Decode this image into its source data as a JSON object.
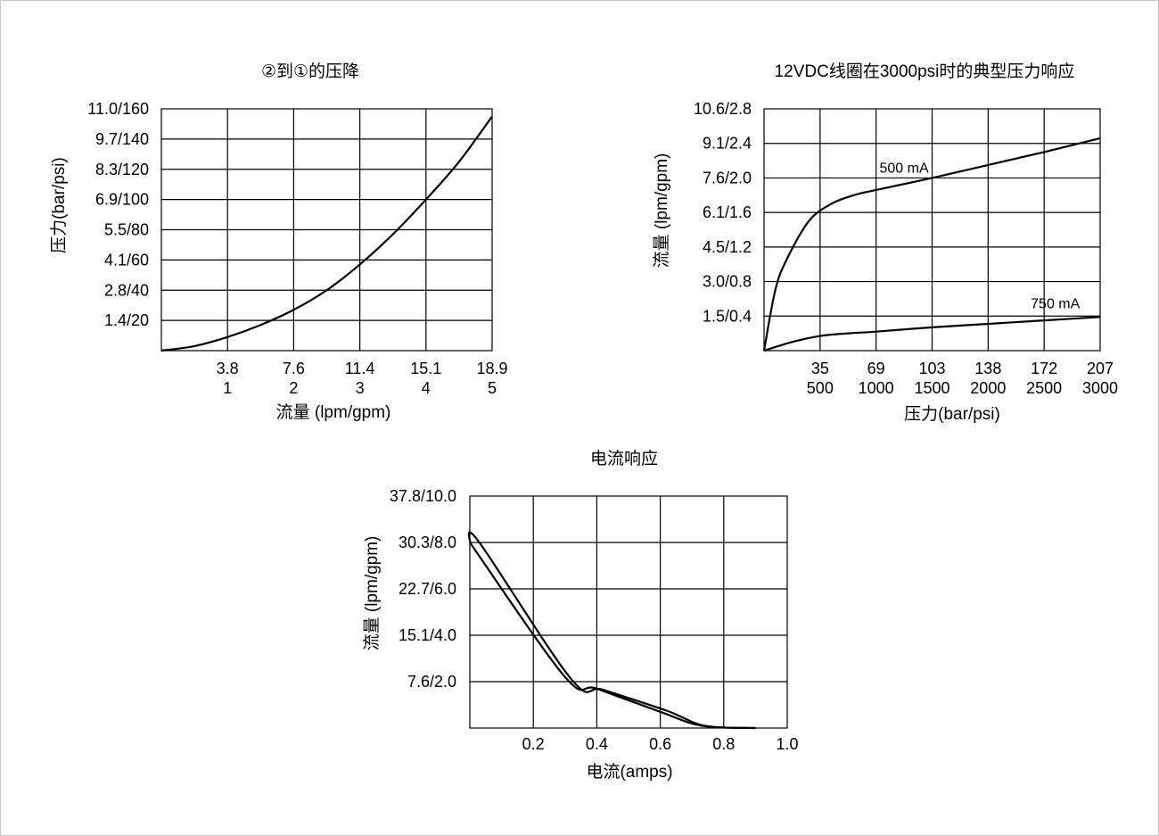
{
  "chart_data": [
    {
      "type": "line",
      "title": "②到①的压降",
      "xlabel": "流量 (lpm/gpm)",
      "ylabel": "压力(bar/psi)",
      "x_tick_labels_top": [
        "3.8",
        "7.6",
        "11.4",
        "15.1",
        "18.9"
      ],
      "x_tick_labels_bottom": [
        "1",
        "2",
        "3",
        "4",
        "5"
      ],
      "y_tick_labels": [
        "1.4/20",
        "2.8/40",
        "4.1/60",
        "5.5/80",
        "6.9/100",
        "8.3/120",
        "9.7/140",
        "11.0/160"
      ],
      "xlim": [
        0,
        5
      ],
      "ylim": [
        0,
        160
      ],
      "series": [
        {
          "x": [
            0,
            0.5,
            1,
            1.5,
            2,
            2.5,
            3,
            3.5,
            4,
            4.5,
            5
          ],
          "y": [
            0,
            3,
            9,
            17,
            27,
            40,
            57,
            77,
            100,
            125,
            155
          ]
        }
      ]
    },
    {
      "type": "line",
      "title": "12VDC线圈在3000psi时的典型压力响应",
      "xlabel": "压力(bar/psi)",
      "ylabel": "流量 (lpm/gpm)",
      "x_tick_labels_top": [
        "35",
        "69",
        "103",
        "138",
        "172",
        "207"
      ],
      "x_tick_labels_bottom": [
        "500",
        "1000",
        "1500",
        "2000",
        "2500",
        "3000"
      ],
      "y_tick_labels": [
        "1.5/0.4",
        "3.0/0.8",
        "4.5/1.2",
        "6.1/1.6",
        "7.6/2.0",
        "9.1/2.4",
        "10.6/2.8"
      ],
      "xlim": [
        0,
        3000
      ],
      "ylim": [
        0,
        2.8
      ],
      "series": [
        {
          "name": "500 mA",
          "x": [
            0,
            100,
            200,
            400,
            600,
            800,
            1000,
            1500,
            2000,
            2500,
            3000
          ],
          "y": [
            0,
            0.7,
            1.05,
            1.5,
            1.7,
            1.8,
            1.86,
            2.0,
            2.15,
            2.3,
            2.46
          ]
        },
        {
          "name": "750 mA",
          "x": [
            0,
            250,
            500,
            750,
            1000,
            1500,
            2000,
            2500,
            3000
          ],
          "y": [
            0,
            0.1,
            0.17,
            0.2,
            0.22,
            0.27,
            0.31,
            0.35,
            0.39
          ]
        }
      ]
    },
    {
      "type": "line",
      "title": "电流响应",
      "xlabel": "电流(amps)",
      "ylabel": "流量 (lpm/gpm)",
      "x_tick_labels": [
        "0.2",
        "0.4",
        "0.6",
        "0.8",
        "1.0"
      ],
      "y_tick_labels": [
        "7.6/2.0",
        "15.1/4.0",
        "22.7/6.0",
        "30.3/8.0",
        "37.8/10.0"
      ],
      "xlim": [
        0,
        1.0
      ],
      "ylim": [
        0,
        10
      ],
      "series": [
        {
          "x": [
            0,
            0.3,
            0.4,
            0.6,
            0.73,
            0.9
          ],
          "y": [
            8.0,
            2.2,
            1.7,
            0.7,
            0.1,
            0.0
          ]
        },
        {
          "x": [
            0,
            0.03,
            0.32,
            0.42,
            0.62,
            0.74,
            0.9
          ],
          "y": [
            8.0,
            8.0,
            2.1,
            1.65,
            0.75,
            0.1,
            0.0
          ]
        }
      ]
    }
  ]
}
